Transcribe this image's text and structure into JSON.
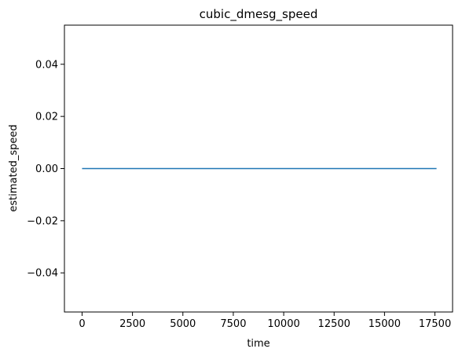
{
  "chart_data": {
    "type": "line",
    "title": "cubic_dmesg_speed",
    "xlabel": "time",
    "ylabel": "estimated_speed",
    "xlim": [
      -875,
      18375
    ],
    "ylim": [
      -0.055,
      0.055
    ],
    "xticks": [
      0,
      2500,
      5000,
      7500,
      10000,
      12500,
      15000,
      17500
    ],
    "xtick_labels": [
      "0",
      "2500",
      "5000",
      "7500",
      "10000",
      "12500",
      "15000",
      "17500"
    ],
    "yticks": [
      -0.04,
      -0.02,
      0.0,
      0.02,
      0.04
    ],
    "ytick_labels": [
      "−0.04",
      "−0.02",
      "0.00",
      "0.02",
      "0.04"
    ],
    "grid": false,
    "series": [
      {
        "color": "#1f77b4",
        "x": [
          0,
          17580
        ],
        "y": [
          0.0,
          0.0
        ]
      }
    ]
  }
}
